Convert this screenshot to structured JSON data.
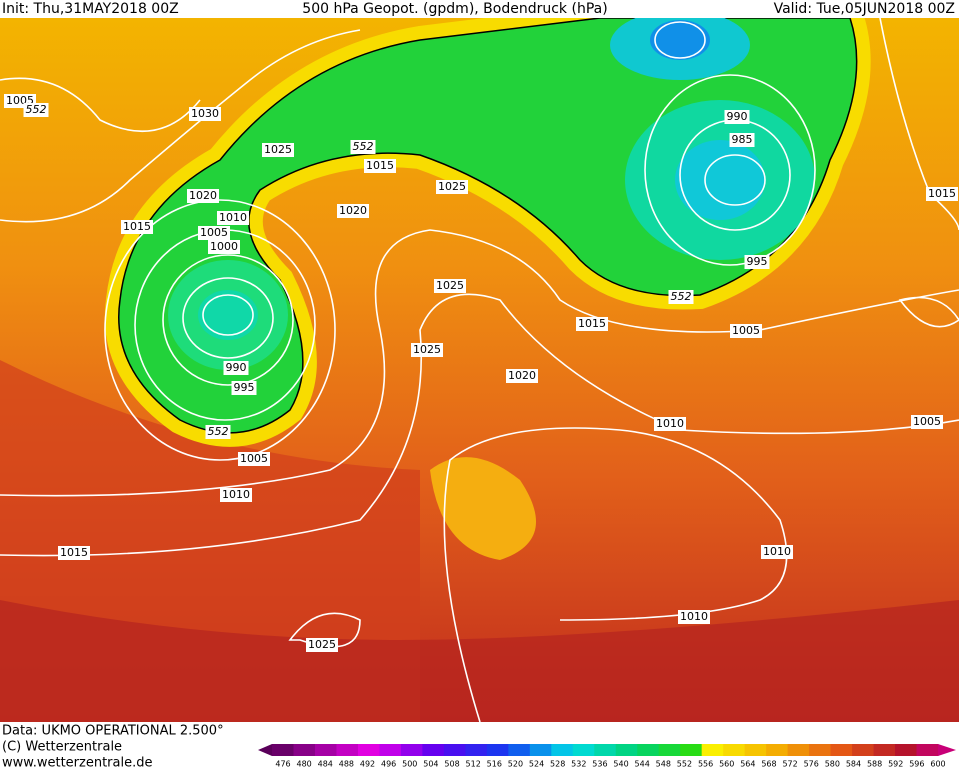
{
  "header": {
    "init": "Init: Thu,31MAY2018 00Z",
    "title": "500 hPa Geopot. (gpdm), Bodendruck (hPa)",
    "valid": "Valid: Tue,05JUN2018 00Z"
  },
  "map": {
    "isobar_labels": [
      "1005",
      "552",
      "1030",
      "1025",
      "552",
      "1015",
      "1025",
      "1020",
      "1010",
      "1015",
      "1020",
      "1005",
      "1000",
      "1025",
      "1015",
      "552",
      "1025",
      "1020",
      "990",
      "995",
      "552",
      "1005",
      "1010",
      "1015",
      "1025",
      "990",
      "985",
      "995",
      "1005",
      "1015",
      "1010",
      "1005",
      "1010",
      "1010"
    ]
  },
  "footer": {
    "data": "Data: UKMO OPERATIONAL 2.500°",
    "copyright": "(C) Wetterzentrale",
    "url": "www.wetterzentrale.de"
  },
  "legend": {
    "labels": [
      "476",
      "480",
      "484",
      "488",
      "492",
      "496",
      "500",
      "504",
      "508",
      "512",
      "516",
      "520",
      "524",
      "528",
      "532",
      "536",
      "540",
      "544",
      "548",
      "552",
      "556",
      "560",
      "564",
      "568",
      "572",
      "576",
      "580",
      "584",
      "588",
      "592",
      "596",
      "600"
    ]
  }
}
